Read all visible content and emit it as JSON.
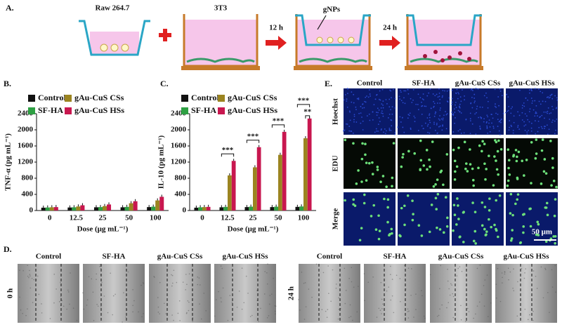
{
  "panel_labels": [
    "A.",
    "B.",
    "C.",
    "D.",
    "E."
  ],
  "schematic": {
    "steps": [
      "Raw 264.7",
      "3T3",
      "gNPs"
    ],
    "arrows": [
      "12 h",
      "24 h"
    ]
  },
  "chart_data": [
    {
      "type": "bar",
      "y_label": "TNF-α (pg mL⁻¹)",
      "x_label": "Dose (μg mL⁻¹)",
      "categories": [
        "0",
        "12.5",
        "25",
        "50",
        "100"
      ],
      "series": [
        {
          "name": "Control",
          "color": "#111111",
          "values": [
            70,
            75,
            80,
            80,
            85
          ]
        },
        {
          "name": "SF-HA",
          "color": "#2ea043",
          "values": [
            75,
            80,
            85,
            90,
            95
          ]
        },
        {
          "name": "gAu-CuS CSs",
          "color": "#9b8420",
          "values": [
            80,
            100,
            110,
            180,
            250
          ]
        },
        {
          "name": "gAu-CuS HSs",
          "color": "#c8174f",
          "values": [
            85,
            130,
            150,
            230,
            340
          ]
        }
      ],
      "ylim": [
        0,
        2400
      ],
      "yticks": [
        0,
        400,
        800,
        1200,
        1600,
        2000,
        2400
      ]
    },
    {
      "type": "bar",
      "y_label": "IL-10 (pg mL⁻¹)",
      "x_label": "Dose (μg mL⁻¹)",
      "categories": [
        "0",
        "12.5",
        "25",
        "50",
        "100"
      ],
      "series": [
        {
          "name": "Control",
          "color": "#111111",
          "values": [
            70,
            80,
            85,
            85,
            90
          ]
        },
        {
          "name": "SF-HA",
          "color": "#2ea043",
          "values": [
            80,
            90,
            95,
            95,
            100
          ]
        },
        {
          "name": "gAu-CuS CSs",
          "color": "#9b8420",
          "values": [
            85,
            870,
            1070,
            1380,
            1790
          ]
        },
        {
          "name": "gAu-CuS HSs",
          "color": "#c8174f",
          "values": [
            90,
            1230,
            1570,
            1950,
            2280
          ]
        }
      ],
      "ylim": [
        0,
        2400
      ],
      "yticks": [
        0,
        400,
        800,
        1200,
        1600,
        2000,
        2400
      ],
      "annotations": [
        "***",
        "***",
        "***",
        "***",
        "**"
      ]
    }
  ],
  "panel_e": {
    "columns": [
      "Control",
      "SF-HA",
      "gAu-CuS CSs",
      "gAu-CuS HSs"
    ],
    "rows": [
      "Hoechst",
      "EDU",
      "Merge"
    ],
    "scale_bar": "50 μm"
  },
  "panel_d": {
    "columns": [
      "Control",
      "SF-HA",
      "gAu-CuS CSs",
      "gAu-CuS HSs"
    ],
    "times": [
      "0 h",
      "24 h"
    ]
  }
}
